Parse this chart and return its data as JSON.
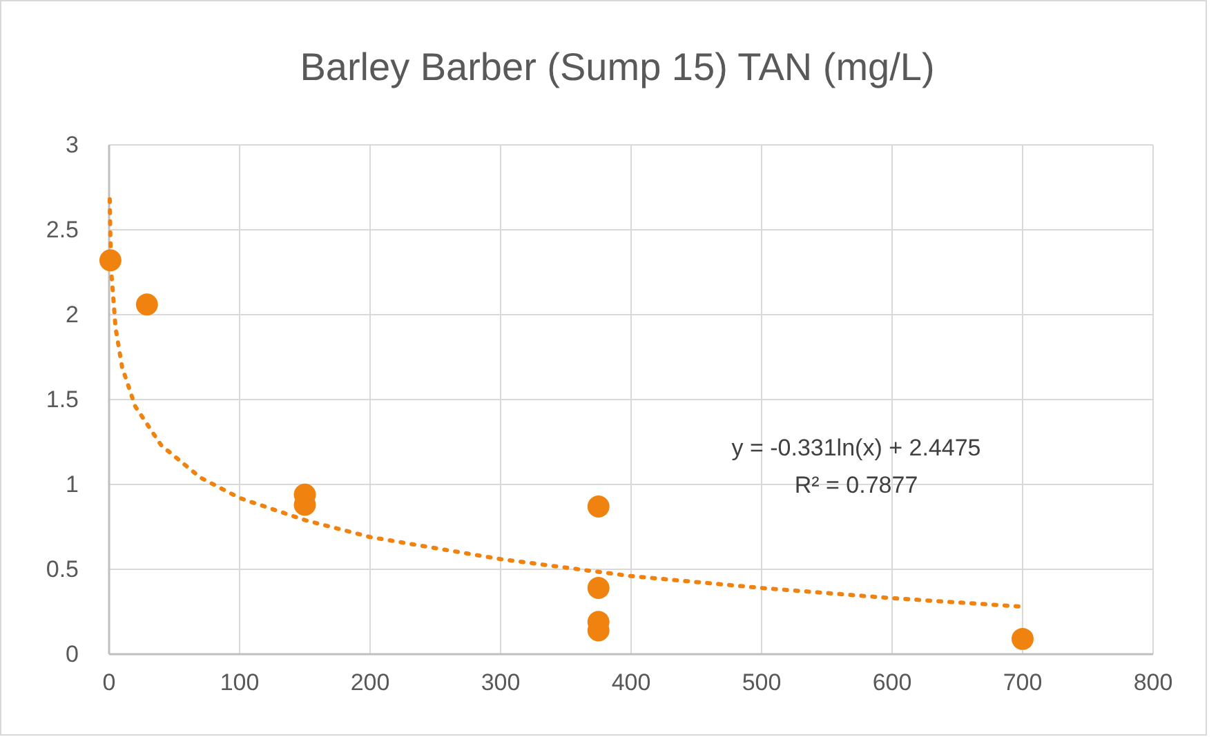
{
  "chart_data": {
    "type": "scatter",
    "title": "Barley Barber (Sump 15) TAN (mg/L)",
    "xlim": [
      0,
      800
    ],
    "xticks": [
      0,
      100,
      200,
      300,
      400,
      500,
      600,
      700,
      800
    ],
    "ylim": [
      0,
      3
    ],
    "yticks": [
      0,
      0.5,
      1,
      1.5,
      2,
      2.5,
      3
    ],
    "grid": true,
    "marker": "circle",
    "series": [
      {
        "color": "#f0820f",
        "x": [
          1,
          29,
          150,
          150,
          375,
          375,
          375,
          375,
          700
        ],
        "values": [
          2.32,
          2.06,
          0.94,
          0.88,
          0.87,
          0.39,
          0.19,
          0.14,
          0.09
        ]
      },
      {
        "type": "line",
        "color": "#f0820f",
        "line_style": "dotted",
        "marker": "none",
        "x": [
          0.5,
          1,
          2,
          5,
          10,
          20,
          40,
          70,
          100,
          150,
          200,
          300,
          400,
          500,
          600,
          700
        ],
        "values": [
          2.68,
          2.45,
          2.22,
          1.92,
          1.69,
          1.46,
          1.23,
          1.04,
          0.92,
          0.79,
          0.69,
          0.56,
          0.46,
          0.39,
          0.33,
          0.28
        ]
      }
    ],
    "annotations": [
      "y = -0.331ln(x) + 2.4475",
      "R² = 0.7877"
    ]
  }
}
